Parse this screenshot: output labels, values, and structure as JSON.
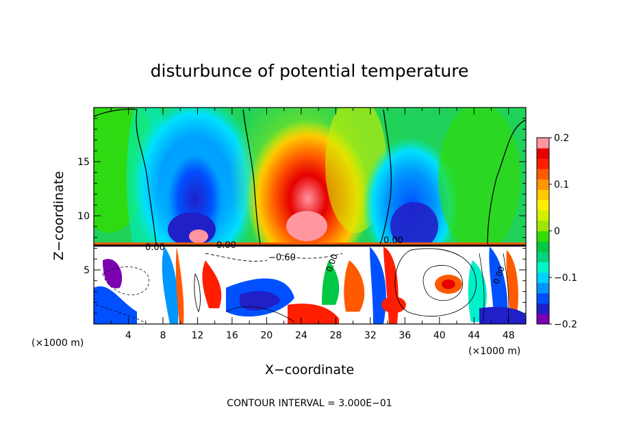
{
  "chart_data": {
    "type": "heatmap",
    "title": "disturbunce of potential temperature",
    "xlabel": "X−coordinate",
    "ylabel": "Z−coordinate",
    "x_unit_left": "(×1000 m)",
    "x_unit_right": "(×1000 m)",
    "xlim": [
      0,
      50
    ],
    "ylim": [
      0,
      20
    ],
    "x_ticks": [
      4,
      8,
      12,
      16,
      20,
      24,
      28,
      32,
      36,
      40,
      44,
      48
    ],
    "y_ticks": [
      5,
      10,
      15
    ],
    "colorbar": {
      "range": [
        -0.2,
        0.2
      ],
      "tick_values": [
        0.2,
        0.1,
        0,
        -0.1,
        -0.2
      ],
      "tick_labels": [
        "0.2",
        "0.1",
        "0",
        "−0.1",
        "−0.2"
      ],
      "colors": [
        "#7b00b0",
        "#2020c8",
        "#0050ff",
        "#0096ff",
        "#00d2ff",
        "#00f5c8",
        "#00d27d",
        "#00c845",
        "#32dc00",
        "#9ee600",
        "#d2f000",
        "#fff000",
        "#ffc800",
        "#ff9600",
        "#ff5a00",
        "#ff1e00",
        "#e60000",
        "#ff96a0"
      ]
    },
    "contour_labels": [
      "0.00",
      "−0.60",
      "0.00",
      "0.00",
      "0.00",
      "0.00"
    ],
    "footer": "CONTOUR INTERVAL = 3.000E−01"
  }
}
